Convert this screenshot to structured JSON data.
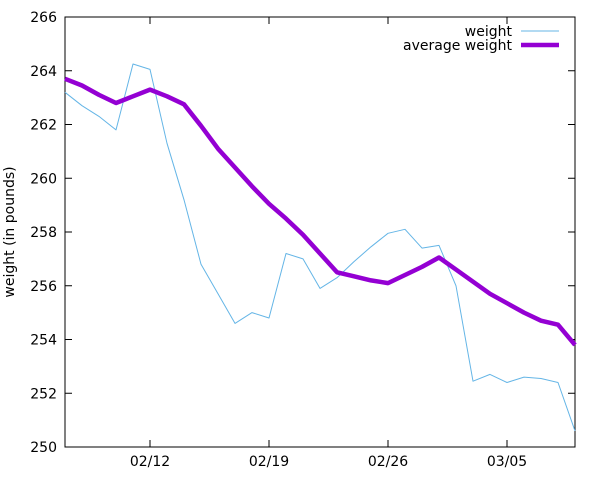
{
  "chart": {
    "background": "#ffffff",
    "axis_color": "#000000",
    "legend": {
      "position": "top-right-inside",
      "entries": [
        {
          "label": "weight",
          "color": "#64b5e6",
          "line_width": 1
        },
        {
          "label": "average weight",
          "color": "#9400d3",
          "line_width": 4.5
        }
      ]
    }
  },
  "chart_data": {
    "type": "line",
    "title": "",
    "xlabel": "",
    "ylabel": "weight (in pounds)",
    "ylim": [
      250,
      266
    ],
    "yticks": [
      250,
      252,
      254,
      256,
      258,
      260,
      262,
      264,
      266
    ],
    "grid": false,
    "x": [
      "02/07",
      "02/08",
      "02/09",
      "02/10",
      "02/11",
      "02/12",
      "02/13",
      "02/14",
      "02/15",
      "02/16",
      "02/17",
      "02/18",
      "02/19",
      "02/20",
      "02/21",
      "02/22",
      "02/23",
      "02/24",
      "02/25",
      "02/26",
      "02/27",
      "02/28",
      "03/01",
      "03/02",
      "03/03",
      "03/04",
      "03/05",
      "03/06",
      "03/07",
      "03/08",
      "03/09"
    ],
    "xticks": [
      {
        "label": "02/12",
        "index": 5
      },
      {
        "label": "02/19",
        "index": 12
      },
      {
        "label": "02/26",
        "index": 19
      },
      {
        "label": "03/05",
        "index": 26
      }
    ],
    "series": [
      {
        "name": "weight",
        "color": "#64b5e6",
        "line_width": 1,
        "values": [
          263.2,
          262.7,
          262.3,
          261.8,
          264.25,
          264.05,
          261.3,
          259.2,
          256.8,
          255.7,
          254.6,
          255.0,
          254.8,
          257.2,
          257.0,
          255.9,
          256.3,
          256.9,
          257.45,
          257.95,
          258.1,
          257.4,
          257.5,
          256.0,
          252.45,
          252.7,
          252.4,
          252.6,
          252.55,
          252.4,
          250.6
        ]
      },
      {
        "name": "average weight",
        "color": "#9400d3",
        "line_width": 4.5,
        "values": [
          263.7,
          263.45,
          263.1,
          262.8,
          263.05,
          263.3,
          263.05,
          262.75,
          261.95,
          261.1,
          260.4,
          259.7,
          259.05,
          258.5,
          257.9,
          257.2,
          256.5,
          256.35,
          256.2,
          256.1,
          256.4,
          256.7,
          257.05,
          256.6,
          256.15,
          255.7,
          255.35,
          255.0,
          254.7,
          254.55,
          253.8
        ]
      }
    ]
  }
}
